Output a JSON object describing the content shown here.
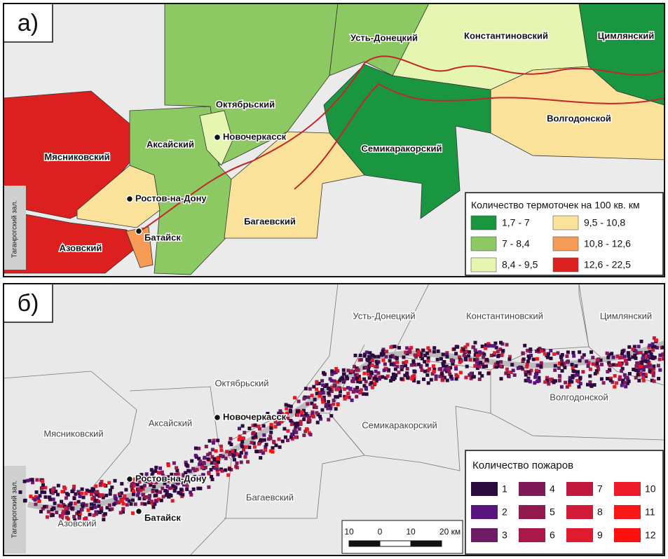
{
  "panels": [
    {
      "label": "а)",
      "districts": [
        "Мясниковский",
        "Азовский",
        "Аксайский",
        "Октябрьский",
        "Усть-Донецкий",
        "Константиновский",
        "Цимлянский",
        "Волгодонской",
        "Семикаракорский",
        "Багаевский"
      ],
      "cities": [
        "Новочеркасск",
        "Ростов-на-Дону",
        "Батайск"
      ],
      "sea": "Таганрогский зал.",
      "legend": {
        "title": "Количество термоточек на 100 кв. км",
        "items": [
          {
            "label": "1,7 - 7",
            "color": "#1a9641"
          },
          {
            "label": "9,5 - 10,8",
            "color": "#fbe29b"
          },
          {
            "label": "7 - 8,4",
            "color": "#8cc963"
          },
          {
            "label": "10,8 - 12,6",
            "color": "#f59b55"
          },
          {
            "label": "8,4 - 9,5",
            "color": "#e6f5b0"
          },
          {
            "label": "12,6 - 22,5",
            "color": "#dc2020"
          }
        ]
      }
    },
    {
      "label": "б)",
      "districts": [
        "Мясниковский",
        "Азовский",
        "Аксайский",
        "Октябрьский",
        "Усть-Донецкий",
        "Константиновский",
        "Цимлянский",
        "Волгодонской",
        "Семикаракорский",
        "Багаевский"
      ],
      "cities": [
        "Новочеркасск",
        "Ростов-на-Дону",
        "Батайск"
      ],
      "sea": "Таганрогский зал.",
      "legend": {
        "title": "Количество пожаров",
        "items": [
          {
            "label": 1,
            "color": "#2b0a3d"
          },
          {
            "label": 4,
            "color": "#7e1a55"
          },
          {
            "label": 7,
            "color": "#c0183f"
          },
          {
            "label": 10,
            "color": "#ee1c2a"
          },
          {
            "label": 2,
            "color": "#5a1480"
          },
          {
            "label": 5,
            "color": "#921a4e"
          },
          {
            "label": 8,
            "color": "#d01a38"
          },
          {
            "label": 11,
            "color": "#f81616"
          },
          {
            "label": 3,
            "color": "#6e1c66"
          },
          {
            "label": 6,
            "color": "#a81848"
          },
          {
            "label": 9,
            "color": "#e21c30"
          },
          {
            "label": 12,
            "color": "#ff1010"
          }
        ]
      },
      "scale_bar": [
        "10",
        "0",
        "10",
        "20 км"
      ]
    }
  ]
}
